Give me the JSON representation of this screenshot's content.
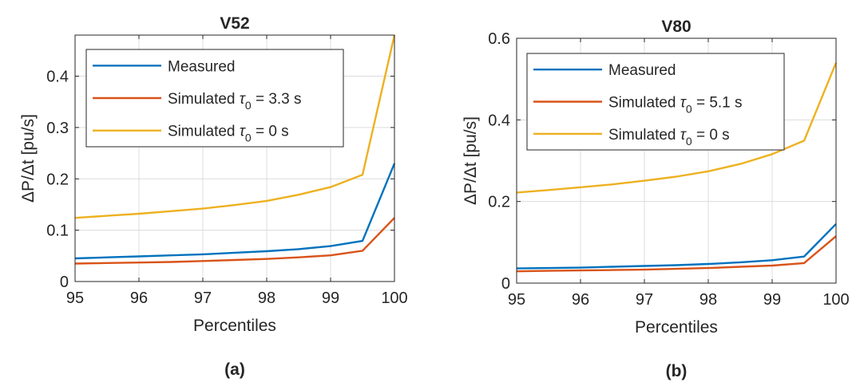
{
  "colors": {
    "measured": "#0072BD",
    "simulated_tau": "#D95319",
    "simulated_zero": "#EDB120"
  },
  "chart_data": [
    {
      "type": "line",
      "title": "V52",
      "panel_label": "(a)",
      "xlabel": "Percentiles",
      "ylabel": "ΔP/Δt [pu/s]",
      "xlim": [
        95,
        100
      ],
      "ylim": [
        0,
        0.48
      ],
      "xticks": [
        "95",
        "96",
        "97",
        "98",
        "99",
        "100"
      ],
      "yticks": [
        "0",
        "0.1",
        "0.2",
        "0.3",
        "0.4"
      ],
      "grid": true,
      "legend_position": "top-left",
      "x": [
        95,
        95.5,
        96,
        96.5,
        97,
        97.5,
        98,
        98.5,
        99,
        99.5,
        100
      ],
      "series": [
        {
          "name": "Measured",
          "values": [
            0.045,
            0.047,
            0.049,
            0.051,
            0.053,
            0.056,
            0.059,
            0.063,
            0.069,
            0.079,
            0.23
          ]
        },
        {
          "name": "Simulated τ0 = 3.3 s",
          "name_parts": {
            "prefix": "Simulated ",
            "symbol": "τ",
            "sub": "0",
            "suffix": " = 3.3 s"
          },
          "values": [
            0.035,
            0.036,
            0.037,
            0.038,
            0.04,
            0.042,
            0.044,
            0.047,
            0.051,
            0.06,
            0.124
          ]
        },
        {
          "name": "Simulated τ0 = 0 s",
          "name_parts": {
            "prefix": "Simulated ",
            "symbol": "τ",
            "sub": "0",
            "suffix": " = 0 s"
          },
          "values": [
            0.124,
            0.128,
            0.132,
            0.137,
            0.142,
            0.149,
            0.157,
            0.169,
            0.184,
            0.208,
            0.48
          ]
        }
      ]
    },
    {
      "type": "line",
      "title": "V80",
      "panel_label": "(b)",
      "xlabel": "Percentiles",
      "ylabel": "ΔP/Δt [pu/s]",
      "xlim": [
        95,
        100
      ],
      "ylim": [
        0,
        0.6
      ],
      "xticks": [
        "95",
        "96",
        "97",
        "98",
        "99",
        "100"
      ],
      "yticks": [
        "0",
        "0.2",
        "0.4",
        "0.6"
      ],
      "grid": true,
      "legend_position": "top-left",
      "x": [
        95,
        95.5,
        96,
        96.5,
        97,
        97.5,
        98,
        98.5,
        99,
        99.5,
        100
      ],
      "series": [
        {
          "name": "Measured",
          "values": [
            0.036,
            0.037,
            0.038,
            0.04,
            0.042,
            0.044,
            0.047,
            0.051,
            0.056,
            0.065,
            0.145
          ]
        },
        {
          "name": "Simulated τ0 = 5.1 s",
          "name_parts": {
            "prefix": "Simulated ",
            "symbol": "τ",
            "sub": "0",
            "suffix": " = 5.1 s"
          },
          "values": [
            0.029,
            0.03,
            0.031,
            0.032,
            0.033,
            0.035,
            0.037,
            0.04,
            0.043,
            0.049,
            0.115
          ]
        },
        {
          "name": "Simulated τ0 = 0 s",
          "name_parts": {
            "prefix": "Simulated ",
            "symbol": "τ",
            "sub": "0",
            "suffix": " = 0 s"
          },
          "values": [
            0.222,
            0.228,
            0.235,
            0.242,
            0.251,
            0.261,
            0.274,
            0.292,
            0.316,
            0.349,
            0.54
          ]
        }
      ]
    }
  ]
}
